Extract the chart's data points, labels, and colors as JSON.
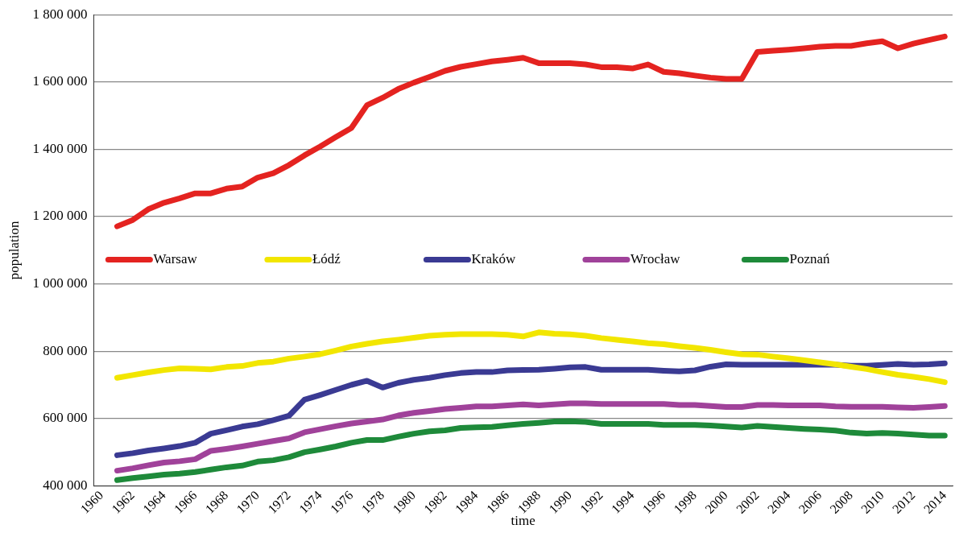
{
  "chart_data": {
    "type": "line",
    "xlabel": "time",
    "ylabel": "population",
    "x": [
      1961,
      1962,
      1963,
      1964,
      1965,
      1966,
      1967,
      1968,
      1969,
      1970,
      1971,
      1972,
      1973,
      1974,
      1975,
      1976,
      1977,
      1978,
      1979,
      1980,
      1981,
      1982,
      1983,
      1984,
      1985,
      1986,
      1987,
      1988,
      1989,
      1990,
      1991,
      1992,
      1993,
      1994,
      1995,
      1996,
      1997,
      1998,
      1999,
      2000,
      2001,
      2002,
      2003,
      2004,
      2005,
      2006,
      2007,
      2008,
      2009,
      2010,
      2011,
      2012,
      2013,
      2014
    ],
    "xlim": [
      1959.5,
      2014.5
    ],
    "xticks": [
      1960,
      1962,
      1964,
      1966,
      1968,
      1970,
      1972,
      1974,
      1976,
      1978,
      1980,
      1982,
      1984,
      1986,
      1988,
      1990,
      1992,
      1994,
      1996,
      1998,
      2000,
      2002,
      2004,
      2006,
      2008,
      2010,
      2012,
      2014
    ],
    "ylim": [
      400000,
      1800000
    ],
    "yticks": [
      {
        "value": 400000,
        "label": "400 000"
      },
      {
        "value": 600000,
        "label": "600 000"
      },
      {
        "value": 800000,
        "label": "800 000"
      },
      {
        "value": 1000000,
        "label": "1 000 000"
      },
      {
        "value": 1200000,
        "label": "1 200 000"
      },
      {
        "value": 1400000,
        "label": "1 400 000"
      },
      {
        "value": 1600000,
        "label": "1 600 000"
      },
      {
        "value": 1800000,
        "label": "1 800 000"
      }
    ],
    "grid": "y",
    "legend": "center",
    "marker": "none",
    "line_style": "solid",
    "series": [
      {
        "name": "Warsaw",
        "color": "#e42320",
        "values": [
          1171000,
          1190000,
          1222000,
          1241000,
          1254000,
          1269000,
          1269000,
          1283000,
          1289000,
          1316000,
          1329000,
          1353000,
          1382000,
          1408000,
          1436000,
          1463000,
          1531000,
          1553000,
          1579000,
          1598000,
          1615000,
          1633000,
          1645000,
          1653000,
          1661000,
          1666000,
          1672000,
          1656000,
          1656000,
          1656000,
          1652000,
          1644000,
          1644000,
          1640000,
          1652000,
          1630000,
          1626000,
          1619000,
          1613000,
          1609000,
          1609000,
          1689000,
          1693000,
          1696000,
          1700000,
          1705000,
          1707000,
          1707000,
          1715000,
          1721000,
          1700000,
          1714000,
          1725000,
          1735000
        ]
      },
      {
        "name": "Łódź",
        "color": "#f2e600",
        "values": [
          721000,
          729000,
          737000,
          744000,
          749000,
          748000,
          746000,
          753000,
          756000,
          765000,
          769000,
          778000,
          784000,
          791000,
          802000,
          814000,
          822000,
          829000,
          834000,
          840000,
          846000,
          849000,
          851000,
          851000,
          851000,
          849000,
          844000,
          856000,
          852000,
          850000,
          846000,
          839000,
          834000,
          829000,
          824000,
          821000,
          815000,
          810000,
          804000,
          797000,
          791000,
          790000,
          784000,
          779000,
          773000,
          767000,
          761000,
          754000,
          747000,
          738000,
          730000,
          724000,
          717000,
          708000
        ]
      },
      {
        "name": "Kraków",
        "color": "#3a3a93",
        "values": [
          491000,
          497000,
          505000,
          511000,
          518000,
          528000,
          555000,
          565000,
          576000,
          583000,
          595000,
          608000,
          656000,
          670000,
          685000,
          700000,
          712000,
          692000,
          706000,
          715000,
          721000,
          729000,
          735000,
          738000,
          738000,
          743000,
          744000,
          745000,
          748000,
          752000,
          753000,
          745000,
          745000,
          745000,
          745000,
          742000,
          740000,
          743000,
          754000,
          761000,
          760000,
          760000,
          760000,
          760000,
          760000,
          760000,
          760000,
          757000,
          757000,
          759000,
          762000,
          760000,
          761000,
          764000
        ]
      },
      {
        "name": "Wrocław",
        "color": "#a0429a",
        "values": [
          445000,
          452000,
          461000,
          469000,
          473000,
          479000,
          504000,
          510000,
          517000,
          525000,
          533000,
          541000,
          559000,
          568000,
          577000,
          585000,
          591000,
          597000,
          609000,
          617000,
          622000,
          628000,
          632000,
          636000,
          636000,
          639000,
          642000,
          639000,
          642000,
          645000,
          645000,
          643000,
          643000,
          643000,
          643000,
          643000,
          640000,
          640000,
          637000,
          634000,
          634000,
          640000,
          640000,
          639000,
          639000,
          639000,
          636000,
          635000,
          635000,
          635000,
          633000,
          632000,
          634000,
          637000
        ]
      },
      {
        "name": "Poznań",
        "color": "#1e8a3a",
        "values": [
          417000,
          423000,
          428000,
          433000,
          436000,
          441000,
          448000,
          455000,
          460000,
          472000,
          476000,
          485000,
          500000,
          508000,
          517000,
          528000,
          536000,
          536000,
          546000,
          555000,
          562000,
          565000,
          572000,
          574000,
          575000,
          580000,
          584000,
          587000,
          591000,
          592000,
          590000,
          584000,
          584000,
          584000,
          584000,
          581000,
          581000,
          581000,
          579000,
          576000,
          573000,
          578000,
          575000,
          572000,
          569000,
          567000,
          564000,
          558000,
          555000,
          557000,
          555000,
          552000,
          549000,
          549000
        ]
      }
    ]
  }
}
